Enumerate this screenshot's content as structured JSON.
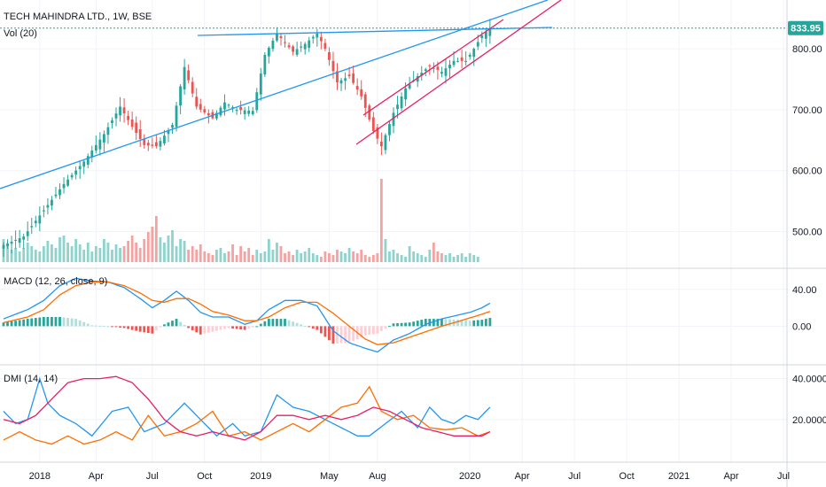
{
  "header": {
    "symbol_title": "TECH MAHINDRA LTD., 1W, BSE",
    "vol_label": "Vol (20)"
  },
  "colors": {
    "up": "#26a69a",
    "down": "#ef5350",
    "vol_up": "#8fd3cc",
    "vol_down": "#f4a3a3",
    "trend_blue": "#2196f3",
    "trend_pink": "#e91e63",
    "macd_line": "#2196f3",
    "signal_line": "#ff6d00",
    "di_plus": "#2196f3",
    "di_minus": "#ff6d00",
    "adx": "#e91e63",
    "last_price_bg": "#26a69a",
    "grid": "#f0f3fa"
  },
  "chart_data": [
    {
      "type": "candlestick",
      "name": "price",
      "ylim": [
        450,
        880
      ],
      "yticks": [
        "500.00",
        "600.00",
        "700.00",
        "800.00"
      ],
      "last_price": "833.95",
      "last_price_value": 833.95,
      "x_range": [
        0,
        194
      ],
      "x_ticks": [
        {
          "i": 9,
          "label": "2018"
        },
        {
          "i": 23,
          "label": "Apr"
        },
        {
          "i": 37,
          "label": "Jul"
        },
        {
          "i": 50,
          "label": "Oct"
        },
        {
          "i": 64,
          "label": "2019"
        },
        {
          "i": 81,
          "label": "May"
        },
        {
          "i": 93,
          "label": "Aug"
        },
        {
          "i": 116,
          "label": "2020"
        },
        {
          "i": 129,
          "label": "Apr"
        },
        {
          "i": 142,
          "label": "Jul"
        },
        {
          "i": 155,
          "label": "Oct"
        },
        {
          "i": 168,
          "label": "2021"
        },
        {
          "i": 181,
          "label": "Apr"
        },
        {
          "i": 194,
          "label": "Jul"
        }
      ],
      "keyframes": [
        [
          0,
          478
        ],
        [
          5,
          492
        ],
        [
          10,
          535
        ],
        [
          15,
          578
        ],
        [
          20,
          615
        ],
        [
          25,
          660
        ],
        [
          29,
          705
        ],
        [
          32,
          672
        ],
        [
          35,
          642
        ],
        [
          38,
          640
        ],
        [
          42,
          675
        ],
        [
          45,
          770
        ],
        [
          48,
          705
        ],
        [
          52,
          686
        ],
        [
          55,
          712
        ],
        [
          58,
          700
        ],
        [
          62,
          698
        ],
        [
          65,
          790
        ],
        [
          68,
          825
        ],
        [
          72,
          795
        ],
        [
          75,
          808
        ],
        [
          78,
          825
        ],
        [
          80,
          800
        ],
        [
          83,
          745
        ],
        [
          86,
          755
        ],
        [
          89,
          722
        ],
        [
          92,
          665
        ],
        [
          94,
          640
        ],
        [
          97,
          695
        ],
        [
          100,
          735
        ],
        [
          103,
          755
        ],
        [
          106,
          772
        ],
        [
          109,
          762
        ],
        [
          112,
          780
        ],
        [
          115,
          780
        ],
        [
          117,
          800
        ],
        [
          119,
          822
        ],
        [
          121,
          833.95
        ]
      ],
      "volumes": [
        26,
        20,
        14,
        16,
        12,
        16,
        22,
        18,
        14,
        12,
        18,
        24,
        20,
        16,
        28,
        30,
        22,
        18,
        26,
        20,
        14,
        22,
        12,
        18,
        16,
        26,
        22,
        14,
        20,
        16,
        18,
        24,
        30,
        22,
        16,
        26,
        34,
        40,
        52,
        28,
        22,
        30,
        36,
        18,
        26,
        24,
        14,
        18,
        14,
        20,
        12,
        10,
        8,
        14,
        16,
        10,
        12,
        20,
        8,
        18,
        12,
        16,
        8,
        14,
        10,
        12,
        26,
        14,
        22,
        18,
        10,
        12,
        8,
        14,
        10,
        12,
        16,
        10,
        8,
        6,
        12,
        10,
        8,
        14,
        12,
        10,
        16,
        12,
        10,
        14,
        8,
        6,
        8,
        10,
        94,
        26,
        12,
        14,
        10,
        8,
        6,
        18,
        12,
        10,
        8,
        6,
        14,
        22,
        12,
        10,
        8,
        10,
        6,
        8,
        10,
        6,
        10,
        8,
        6
      ]
    },
    {
      "type": "macd",
      "name": "macd",
      "legend": "MACD (12, 26, close, 9)",
      "ylim": [
        -40,
        60
      ],
      "yticks": [
        "0.00",
        "40.00"
      ],
      "macd_keyframes": [
        [
          0,
          8
        ],
        [
          6,
          18
        ],
        [
          10,
          28
        ],
        [
          14,
          44
        ],
        [
          18,
          52
        ],
        [
          22,
          49
        ],
        [
          26,
          48
        ],
        [
          30,
          42
        ],
        [
          34,
          30
        ],
        [
          37,
          20
        ],
        [
          40,
          28
        ],
        [
          43,
          38
        ],
        [
          46,
          28
        ],
        [
          49,
          15
        ],
        [
          52,
          10
        ],
        [
          56,
          10
        ],
        [
          60,
          2
        ],
        [
          63,
          6
        ],
        [
          66,
          18
        ],
        [
          70,
          28
        ],
        [
          74,
          28
        ],
        [
          78,
          22
        ],
        [
          82,
          -5
        ],
        [
          86,
          -18
        ],
        [
          90,
          -24
        ],
        [
          93,
          -28
        ],
        [
          97,
          -15
        ],
        [
          101,
          -8
        ],
        [
          105,
          2
        ],
        [
          109,
          8
        ],
        [
          113,
          12
        ],
        [
          116,
          15
        ],
        [
          119,
          20
        ],
        [
          121,
          25
        ]
      ],
      "signal_keyframes": [
        [
          0,
          4
        ],
        [
          6,
          10
        ],
        [
          10,
          18
        ],
        [
          14,
          34
        ],
        [
          18,
          44
        ],
        [
          22,
          48
        ],
        [
          26,
          48
        ],
        [
          30,
          44
        ],
        [
          34,
          36
        ],
        [
          37,
          28
        ],
        [
          40,
          26
        ],
        [
          43,
          30
        ],
        [
          46,
          30
        ],
        [
          49,
          24
        ],
        [
          52,
          16
        ],
        [
          56,
          12
        ],
        [
          60,
          6
        ],
        [
          63,
          6
        ],
        [
          66,
          10
        ],
        [
          70,
          20
        ],
        [
          74,
          26
        ],
        [
          78,
          26
        ],
        [
          82,
          14
        ],
        [
          86,
          0
        ],
        [
          90,
          -14
        ],
        [
          93,
          -20
        ],
        [
          97,
          -18
        ],
        [
          101,
          -12
        ],
        [
          105,
          -6
        ],
        [
          109,
          0
        ],
        [
          113,
          5
        ],
        [
          116,
          9
        ],
        [
          119,
          13
        ],
        [
          121,
          16
        ]
      ]
    },
    {
      "type": "dmi",
      "name": "dmi",
      "legend": "DMI (14, 14)",
      "ylim": [
        0,
        45
      ],
      "yticks": [
        "20.0000",
        "40.0000"
      ],
      "di_plus_keyframes": [
        [
          0,
          24
        ],
        [
          3,
          18
        ],
        [
          6,
          20
        ],
        [
          9,
          40
        ],
        [
          11,
          28
        ],
        [
          14,
          22
        ],
        [
          18,
          18
        ],
        [
          22,
          12
        ],
        [
          27,
          24
        ],
        [
          31,
          26
        ],
        [
          35,
          14
        ],
        [
          40,
          18
        ],
        [
          45,
          28
        ],
        [
          49,
          20
        ],
        [
          53,
          12
        ],
        [
          57,
          18
        ],
        [
          60,
          12
        ],
        [
          64,
          14
        ],
        [
          68,
          32
        ],
        [
          72,
          26
        ],
        [
          76,
          24
        ],
        [
          80,
          20
        ],
        [
          84,
          16
        ],
        [
          88,
          12
        ],
        [
          91,
          12
        ],
        [
          95,
          18
        ],
        [
          99,
          24
        ],
        [
          103,
          16
        ],
        [
          106,
          26
        ],
        [
          109,
          20
        ],
        [
          112,
          18
        ],
        [
          115,
          22
        ],
        [
          118,
          20
        ],
        [
          121,
          26
        ]
      ],
      "di_minus_keyframes": [
        [
          0,
          10
        ],
        [
          4,
          14
        ],
        [
          8,
          10
        ],
        [
          12,
          8
        ],
        [
          16,
          12
        ],
        [
          20,
          8
        ],
        [
          24,
          10
        ],
        [
          28,
          14
        ],
        [
          32,
          10
        ],
        [
          36,
          22
        ],
        [
          40,
          12
        ],
        [
          44,
          14
        ],
        [
          48,
          18
        ],
        [
          52,
          24
        ],
        [
          56,
          12
        ],
        [
          60,
          14
        ],
        [
          64,
          10
        ],
        [
          68,
          14
        ],
        [
          72,
          18
        ],
        [
          76,
          14
        ],
        [
          80,
          20
        ],
        [
          84,
          26
        ],
        [
          88,
          28
        ],
        [
          91,
          36
        ],
        [
          94,
          24
        ],
        [
          98,
          20
        ],
        [
          102,
          22
        ],
        [
          106,
          16
        ],
        [
          110,
          15
        ],
        [
          114,
          16
        ],
        [
          118,
          12
        ],
        [
          121,
          14
        ]
      ],
      "adx_keyframes": [
        [
          0,
          20
        ],
        [
          4,
          18
        ],
        [
          8,
          22
        ],
        [
          12,
          30
        ],
        [
          16,
          38
        ],
        [
          20,
          40
        ],
        [
          24,
          40
        ],
        [
          28,
          41
        ],
        [
          32,
          38
        ],
        [
          36,
          30
        ],
        [
          40,
          20
        ],
        [
          44,
          14
        ],
        [
          48,
          12
        ],
        [
          52,
          14
        ],
        [
          56,
          12
        ],
        [
          60,
          10
        ],
        [
          64,
          14
        ],
        [
          68,
          22
        ],
        [
          72,
          22
        ],
        [
          76,
          20
        ],
        [
          80,
          22
        ],
        [
          84,
          20
        ],
        [
          88,
          22
        ],
        [
          92,
          26
        ],
        [
          96,
          24
        ],
        [
          100,
          20
        ],
        [
          104,
          16
        ],
        [
          108,
          14
        ],
        [
          112,
          12
        ],
        [
          116,
          12
        ],
        [
          119,
          12
        ],
        [
          121,
          14
        ]
      ]
    }
  ]
}
